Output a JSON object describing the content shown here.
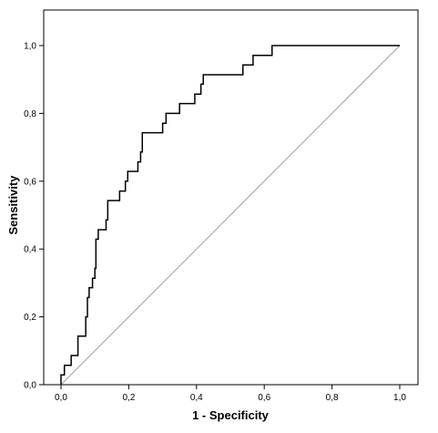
{
  "chart_data": {
    "type": "line",
    "title": "",
    "xlabel": "1 - Specificity",
    "ylabel": "Sensitivity",
    "xlim": [
      0,
      1
    ],
    "ylim": [
      0,
      1
    ],
    "x_ticks": [
      "0,0",
      "0,2",
      "0,4",
      "0,6",
      "0,8",
      "1,0"
    ],
    "y_ticks": [
      "0,0",
      "0,2",
      "0,4",
      "0,6",
      "0,8",
      "1,0"
    ],
    "grid": false,
    "legend": "none",
    "series": [
      {
        "color": "#000000",
        "points": [
          [
            0,
            0
          ],
          [
            0,
            0.029
          ],
          [
            0.01,
            0.029
          ],
          [
            0.01,
            0.057
          ],
          [
            0.03,
            0.057
          ],
          [
            0.03,
            0.086
          ],
          [
            0.05,
            0.086
          ],
          [
            0.05,
            0.143
          ],
          [
            0.073,
            0.143
          ],
          [
            0.073,
            0.2
          ],
          [
            0.078,
            0.2
          ],
          [
            0.078,
            0.257
          ],
          [
            0.083,
            0.257
          ],
          [
            0.083,
            0.286
          ],
          [
            0.093,
            0.286
          ],
          [
            0.093,
            0.314
          ],
          [
            0.1,
            0.314
          ],
          [
            0.1,
            0.343
          ],
          [
            0.103,
            0.343
          ],
          [
            0.103,
            0.429
          ],
          [
            0.11,
            0.429
          ],
          [
            0.11,
            0.457
          ],
          [
            0.133,
            0.457
          ],
          [
            0.133,
            0.486
          ],
          [
            0.138,
            0.486
          ],
          [
            0.138,
            0.543
          ],
          [
            0.173,
            0.543
          ],
          [
            0.173,
            0.571
          ],
          [
            0.19,
            0.571
          ],
          [
            0.19,
            0.6
          ],
          [
            0.197,
            0.6
          ],
          [
            0.197,
            0.629
          ],
          [
            0.227,
            0.629
          ],
          [
            0.227,
            0.657
          ],
          [
            0.235,
            0.657
          ],
          [
            0.235,
            0.686
          ],
          [
            0.24,
            0.686
          ],
          [
            0.24,
            0.743
          ],
          [
            0.3,
            0.743
          ],
          [
            0.3,
            0.771
          ],
          [
            0.31,
            0.771
          ],
          [
            0.31,
            0.8
          ],
          [
            0.35,
            0.8
          ],
          [
            0.35,
            0.829
          ],
          [
            0.395,
            0.829
          ],
          [
            0.395,
            0.857
          ],
          [
            0.413,
            0.857
          ],
          [
            0.413,
            0.886
          ],
          [
            0.42,
            0.886
          ],
          [
            0.42,
            0.914
          ],
          [
            0.537,
            0.914
          ],
          [
            0.537,
            0.943
          ],
          [
            0.567,
            0.943
          ],
          [
            0.567,
            0.971
          ],
          [
            0.623,
            0.971
          ],
          [
            0.623,
            1
          ],
          [
            1,
            1
          ]
        ]
      },
      {
        "color": "#a0a0a0",
        "points": [
          [
            0,
            0
          ],
          [
            1,
            1
          ]
        ]
      }
    ]
  }
}
